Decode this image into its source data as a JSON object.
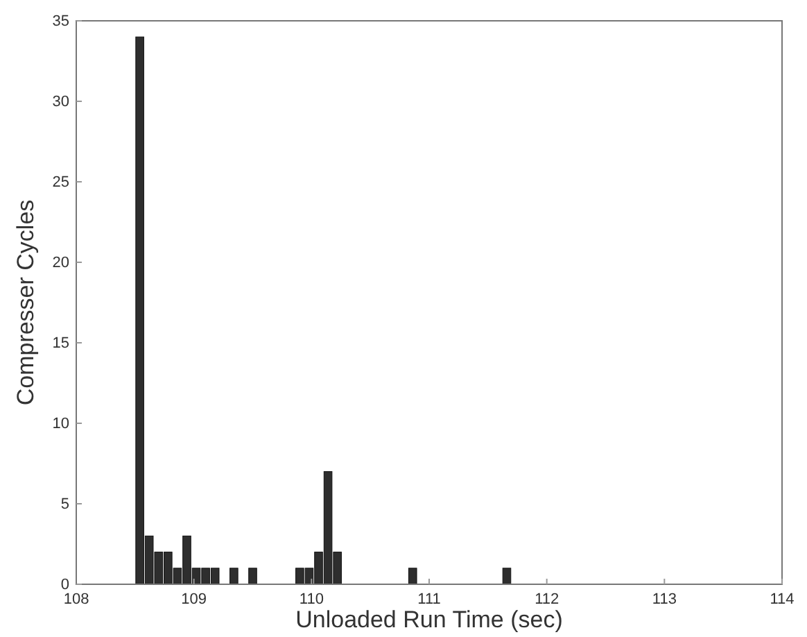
{
  "chart_data": {
    "type": "histogram",
    "xlabel": "Unloaded Run Time (sec)",
    "ylabel": "Compresser Cycles",
    "bins": [
      108.5,
      108.58,
      108.66,
      108.74,
      108.82,
      108.9,
      108.98,
      109.06,
      109.14,
      109.22,
      109.3,
      109.38,
      109.46,
      109.54,
      109.62,
      109.7,
      109.78,
      109.86,
      109.94,
      110.02,
      110.1,
      110.18,
      110.26,
      110.34,
      110.42,
      110.5,
      110.58,
      110.66,
      110.74,
      110.82,
      110.9,
      110.98,
      111.06,
      111.14,
      111.22,
      111.3,
      111.38,
      111.46,
      111.54,
      111.62,
      111.7
    ],
    "values": [
      34,
      3,
      2,
      2,
      1,
      3,
      1,
      1,
      1,
      0,
      1,
      0,
      1,
      0,
      0,
      0,
      0,
      1,
      1,
      2,
      7,
      2,
      0,
      0,
      0,
      0,
      0,
      0,
      0,
      1,
      0,
      0,
      0,
      0,
      0,
      0,
      0,
      0,
      0,
      1
    ],
    "color": "#2e2e2e",
    "xlim": [
      108,
      114
    ],
    "ylim": [
      0,
      35
    ],
    "xticks": [
      108,
      109,
      110,
      111,
      112,
      113,
      114
    ],
    "yticks": [
      0,
      5,
      10,
      15,
      20,
      25,
      30,
      35
    ],
    "grid": false
  }
}
